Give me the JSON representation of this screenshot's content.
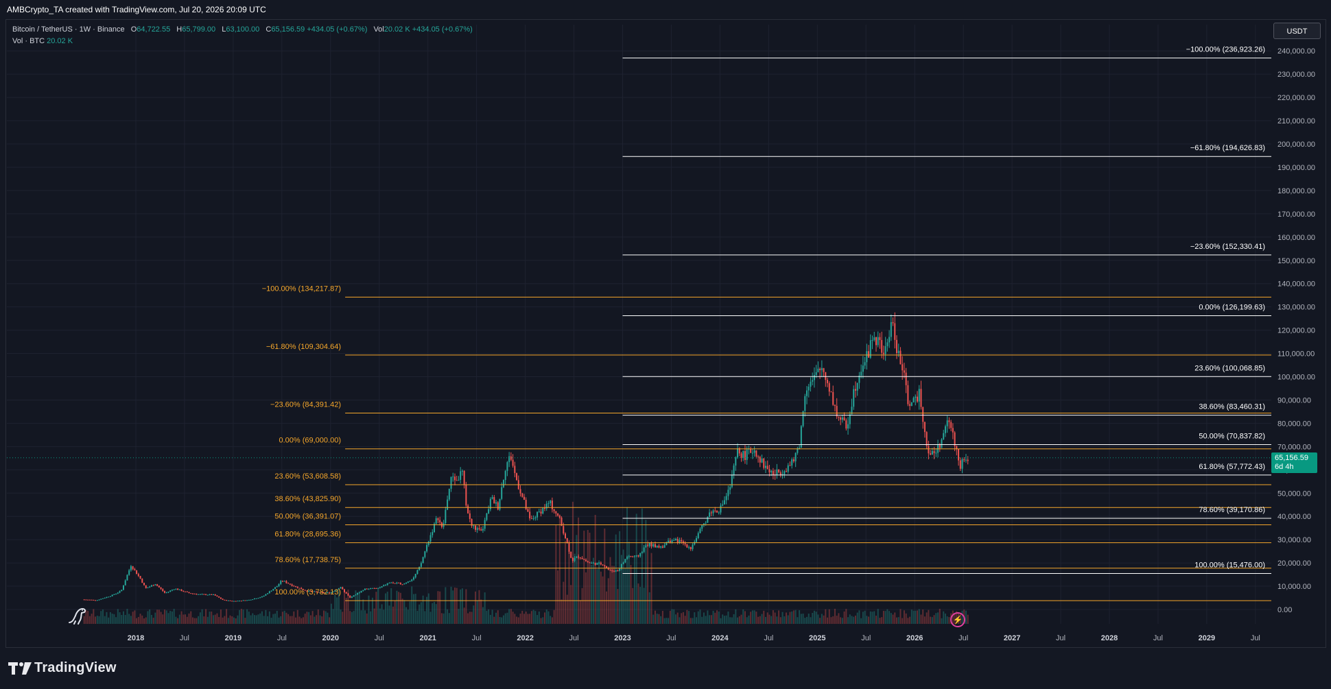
{
  "header": {
    "title": "AMBCrypto_TA created with TradingView.com, Jul 20, 2026 20:09 UTC"
  },
  "symbol": {
    "name": "Bitcoin / TetherUS · 1W · Binance",
    "o_label": "O",
    "o": "64,722.55",
    "h_label": "H",
    "h": "65,799.00",
    "l_label": "L",
    "l": "63,100.00",
    "c_label": "C",
    "c": "65,156.59",
    "chg": "+434.05 (+0.67%)",
    "vol_label": "Vol",
    "vol": "20.02 K",
    "vol_chg": "+434.05 (+0.67%)",
    "vol_row_label": "Vol · BTC",
    "vol_row_value": "20.02 K"
  },
  "currency": "USDT",
  "last_price": {
    "value": "65,156.59",
    "countdown": "6d 4h"
  },
  "colors": {
    "up": "#26a69a",
    "down": "#ef5350",
    "fib_white": "#ffffff",
    "fib_orange": "#f6a72b",
    "accent_green": "#089981"
  },
  "footer": {
    "brand": "TradingView"
  },
  "icons": {
    "logo": "tradingview-logo-icon",
    "dino": "dino-icon",
    "flash": "lightning-icon"
  },
  "chart_data": {
    "type": "candlestick",
    "y_axis": {
      "min": 0,
      "max": 240000,
      "step": 10000,
      "ticks": [
        "240,000.00",
        "230,000.00",
        "220,000.00",
        "210,000.00",
        "200,000.00",
        "190,000.00",
        "180,000.00",
        "170,000.00",
        "160,000.00",
        "150,000.00",
        "140,000.00",
        "130,000.00",
        "120,000.00",
        "110,000.00",
        "100,000.00",
        "90,000.00",
        "80,000.00",
        "70,000.00",
        "60,000.00",
        "50,000.00",
        "40,000.00",
        "30,000.00",
        "20,000.00",
        "10,000.00",
        "0.00"
      ]
    },
    "x_axis": {
      "min": 2017.4,
      "max": 2029.85,
      "ticks": [
        {
          "t": 2018.0,
          "label": "2018",
          "bold": true
        },
        {
          "t": 2018.5,
          "label": "Jul"
        },
        {
          "t": 2019.0,
          "label": "2019",
          "bold": true
        },
        {
          "t": 2019.5,
          "label": "Jul"
        },
        {
          "t": 2020.0,
          "label": "2020",
          "bold": true
        },
        {
          "t": 2020.5,
          "label": "Jul"
        },
        {
          "t": 2021.0,
          "label": "2021",
          "bold": true
        },
        {
          "t": 2021.5,
          "label": "Jul"
        },
        {
          "t": 2022.0,
          "label": "2022",
          "bold": true
        },
        {
          "t": 2022.5,
          "label": "Jul"
        },
        {
          "t": 2023.0,
          "label": "2023",
          "bold": true
        },
        {
          "t": 2023.5,
          "label": "Jul"
        },
        {
          "t": 2024.0,
          "label": "2024",
          "bold": true
        },
        {
          "t": 2024.5,
          "label": "Jul"
        },
        {
          "t": 2025.0,
          "label": "2025",
          "bold": true
        },
        {
          "t": 2025.5,
          "label": "Jul"
        },
        {
          "t": 2026.0,
          "label": "2026",
          "bold": true
        },
        {
          "t": 2026.5,
          "label": "Jul"
        },
        {
          "t": 2027.0,
          "label": "2027",
          "bold": true
        },
        {
          "t": 2027.5,
          "label": "Jul"
        },
        {
          "t": 2028.0,
          "label": "2028",
          "bold": true
        },
        {
          "t": 2028.5,
          "label": "Jul"
        },
        {
          "t": 2029.0,
          "label": "2029",
          "bold": true
        },
        {
          "t": 2029.5,
          "label": "Jul"
        }
      ]
    },
    "fib_orange": {
      "x_start": 2020.15,
      "x_end": 2029.85,
      "levels": [
        {
          "label": "−100.00% (134,217.87)",
          "value": 134217.87
        },
        {
          "label": "−61.80% (109,304.64)",
          "value": 109304.64
        },
        {
          "label": "−23.60% (84,391.42)",
          "value": 84391.42
        },
        {
          "label": "0.00% (69,000.00)",
          "value": 69000.0
        },
        {
          "label": "23.60% (53,608.58)",
          "value": 53608.58
        },
        {
          "label": "38.60% (43,825.90)",
          "value": 43825.9
        },
        {
          "label": "50.00% (36,391.07)",
          "value": 36391.07
        },
        {
          "label": "61.80% (28,695.36)",
          "value": 28695.36
        },
        {
          "label": "78.60% (17,738.75)",
          "value": 17738.75
        },
        {
          "label": "100.00% (3,782.13)",
          "value": 3782.13
        }
      ]
    },
    "fib_white": {
      "x_start": 2023.0,
      "x_end": 2029.85,
      "levels": [
        {
          "label": "−100.00% (236,923.26)",
          "value": 236923.26
        },
        {
          "label": "−61.80% (194,626.83)",
          "value": 194626.83
        },
        {
          "label": "−23.60% (152,330.41)",
          "value": 152330.41
        },
        {
          "label": "0.00% (126,199.63)",
          "value": 126199.63
        },
        {
          "label": "23.60% (100,068.85)",
          "value": 100068.85
        },
        {
          "label": "38.60% (83,460.31)",
          "value": 83460.31
        },
        {
          "label": "50.00% (70,837.82)",
          "value": 70837.82
        },
        {
          "label": "61.80% (57,772.43)",
          "value": 57772.43
        },
        {
          "label": "78.60% (39,170.86)",
          "value": 39170.86
        },
        {
          "label": "100.00% (15,476.00)",
          "value": 15476.0
        }
      ]
    },
    "price_path": [
      [
        2017.45,
        4300
      ],
      [
        2017.6,
        4000
      ],
      [
        2017.75,
        6000
      ],
      [
        2017.85,
        8000
      ],
      [
        2017.95,
        19000
      ],
      [
        2018.05,
        13000
      ],
      [
        2018.1,
        9000
      ],
      [
        2018.2,
        11000
      ],
      [
        2018.3,
        7000
      ],
      [
        2018.4,
        9000
      ],
      [
        2018.55,
        7000
      ],
      [
        2018.65,
        6500
      ],
      [
        2018.8,
        6300
      ],
      [
        2018.9,
        4000
      ],
      [
        2019.0,
        3600
      ],
      [
        2019.15,
        4000
      ],
      [
        2019.3,
        5500
      ],
      [
        2019.45,
        10000
      ],
      [
        2019.5,
        12500
      ],
      [
        2019.6,
        10500
      ],
      [
        2019.75,
        8000
      ],
      [
        2019.9,
        7200
      ],
      [
        2020.0,
        7200
      ],
      [
        2020.1,
        9500
      ],
      [
        2020.2,
        5000
      ],
      [
        2020.35,
        8800
      ],
      [
        2020.5,
        9200
      ],
      [
        2020.6,
        11500
      ],
      [
        2020.75,
        11000
      ],
      [
        2020.85,
        13500
      ],
      [
        2020.92,
        18500
      ],
      [
        2021.0,
        29000
      ],
      [
        2021.1,
        40000
      ],
      [
        2021.15,
        34000
      ],
      [
        2021.2,
        48000
      ],
      [
        2021.25,
        58000
      ],
      [
        2021.3,
        55000
      ],
      [
        2021.35,
        60000
      ],
      [
        2021.4,
        43000
      ],
      [
        2021.45,
        36000
      ],
      [
        2021.55,
        33000
      ],
      [
        2021.6,
        40000
      ],
      [
        2021.65,
        48000
      ],
      [
        2021.72,
        44000
      ],
      [
        2021.8,
        62000
      ],
      [
        2021.85,
        66000
      ],
      [
        2021.9,
        57000
      ],
      [
        2021.98,
        47000
      ],
      [
        2022.05,
        38000
      ],
      [
        2022.15,
        42000
      ],
      [
        2022.25,
        46000
      ],
      [
        2022.35,
        39000
      ],
      [
        2022.42,
        30000
      ],
      [
        2022.48,
        21000
      ],
      [
        2022.55,
        23000
      ],
      [
        2022.65,
        20000
      ],
      [
        2022.8,
        19500
      ],
      [
        2022.87,
        16500
      ],
      [
        2022.95,
        16800
      ],
      [
        2023.05,
        23000
      ],
      [
        2023.15,
        22500
      ],
      [
        2023.25,
        28000
      ],
      [
        2023.4,
        27000
      ],
      [
        2023.5,
        30000
      ],
      [
        2023.6,
        29000
      ],
      [
        2023.7,
        26500
      ],
      [
        2023.8,
        34000
      ],
      [
        2023.9,
        42000
      ],
      [
        2024.0,
        43000
      ],
      [
        2024.1,
        52000
      ],
      [
        2024.18,
        68000
      ],
      [
        2024.25,
        66000
      ],
      [
        2024.35,
        69000
      ],
      [
        2024.45,
        62000
      ],
      [
        2024.55,
        58000
      ],
      [
        2024.65,
        60000
      ],
      [
        2024.75,
        63000
      ],
      [
        2024.82,
        72000
      ],
      [
        2024.88,
        96000
      ],
      [
        2024.95,
        98000
      ],
      [
        2025.05,
        104000
      ],
      [
        2025.12,
        96000
      ],
      [
        2025.2,
        84000
      ],
      [
        2025.3,
        78000
      ],
      [
        2025.38,
        95000
      ],
      [
        2025.45,
        105000
      ],
      [
        2025.52,
        109000
      ],
      [
        2025.57,
        118000
      ],
      [
        2025.63,
        114000
      ],
      [
        2025.7,
        110000
      ],
      [
        2025.76,
        124000
      ],
      [
        2025.82,
        112000
      ],
      [
        2025.88,
        102000
      ],
      [
        2025.93,
        90000
      ],
      [
        2026.0,
        88000
      ],
      [
        2026.05,
        95000
      ],
      [
        2026.1,
        77000
      ],
      [
        2026.15,
        66000
      ],
      [
        2026.22,
        68000
      ],
      [
        2026.3,
        75000
      ],
      [
        2026.35,
        82000
      ],
      [
        2026.42,
        70000
      ],
      [
        2026.47,
        62000
      ],
      [
        2026.5,
        63100
      ],
      [
        2026.55,
        65156
      ]
    ]
  }
}
